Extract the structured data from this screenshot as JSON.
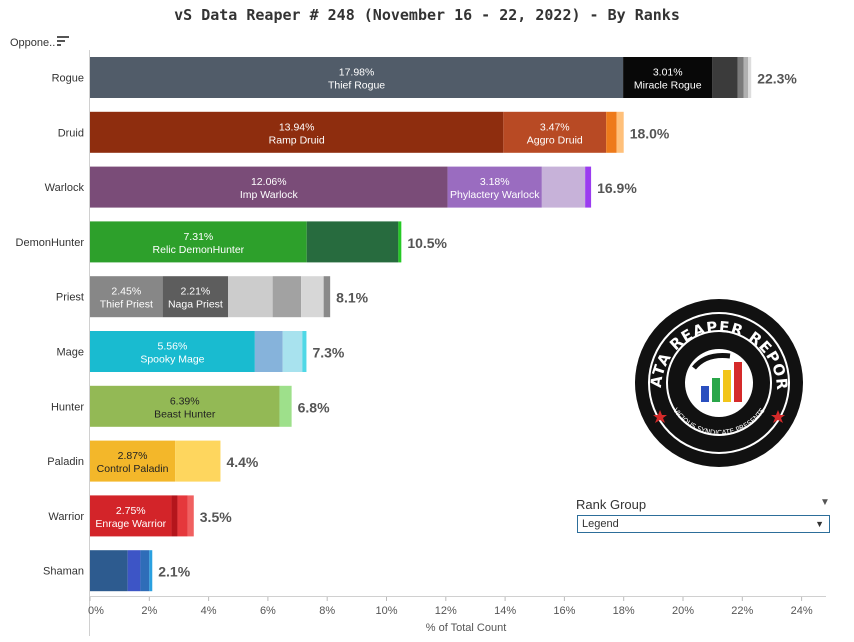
{
  "title": "vS Data Reaper #  248 (November 16 - 22, 2022) - By Ranks",
  "sort_label": "Oppone..",
  "filter": {
    "label": "Rank Group",
    "value": "Legend"
  },
  "logo": {
    "text_top": "DATA REAPER REPORT",
    "text_bottom": "VICIOUS SYNDICATE PRESENTS"
  },
  "chart_data": {
    "type": "bar",
    "orientation": "horizontal",
    "stacked": true,
    "xlabel": "% of Total Count",
    "xlim": [
      0,
      24
    ],
    "xticks": [
      0,
      2,
      4,
      6,
      8,
      10,
      12,
      14,
      16,
      18,
      20,
      22,
      24
    ],
    "xtick_labels": [
      "0%",
      "2%",
      "4%",
      "6%",
      "8%",
      "10%",
      "12%",
      "14%",
      "16%",
      "18%",
      "20%",
      "22%",
      "24%"
    ],
    "grid": false,
    "rows": [
      {
        "class": "Rogue",
        "total": "22.3%",
        "segments": [
          {
            "value": 17.98,
            "color": "#515c69",
            "label": "17.98%",
            "name": "Thief Rogue"
          },
          {
            "value": 3.01,
            "color": "#080808",
            "label": "3.01%",
            "name": "Miracle Rogue"
          },
          {
            "value": 0.85,
            "color": "#3b3b3b"
          },
          {
            "value": 0.2,
            "color": "#7a7a7a"
          },
          {
            "value": 0.16,
            "color": "#b0b0b0"
          },
          {
            "value": 0.1,
            "color": "#dddddd"
          }
        ]
      },
      {
        "class": "Druid",
        "total": "18.0%",
        "segments": [
          {
            "value": 13.94,
            "color": "#8e2d0e",
            "label": "13.94%",
            "name": "Ramp Druid"
          },
          {
            "value": 3.47,
            "color": "#b84a24",
            "label": "3.47%",
            "name": "Aggro Druid"
          },
          {
            "value": 0.35,
            "color": "#ee7a1a"
          },
          {
            "value": 0.24,
            "color": "#ffc07a"
          }
        ]
      },
      {
        "class": "Warlock",
        "total": "16.9%",
        "segments": [
          {
            "value": 12.06,
            "color": "#7a4c78",
            "label": "12.06%",
            "name": "Imp Warlock"
          },
          {
            "value": 3.18,
            "color": "#9a6cc0",
            "label": "3.18%",
            "name": "Phylactery Warlock"
          },
          {
            "value": 1.46,
            "color": "#c7b2d9"
          },
          {
            "value": 0.2,
            "color": "#9b3cf0"
          }
        ]
      },
      {
        "class": "DemonHunter",
        "total": "10.5%",
        "segments": [
          {
            "value": 7.31,
            "color": "#2da02b",
            "label": "7.31%",
            "name": "Relic DemonHunter"
          },
          {
            "value": 3.09,
            "color": "#276b3e"
          },
          {
            "value": 0.1,
            "color": "#25c925"
          }
        ]
      },
      {
        "class": "Priest",
        "total": "8.1%",
        "segments": [
          {
            "value": 2.45,
            "color": "#878787",
            "label": "2.45%",
            "name": "Thief Priest"
          },
          {
            "value": 2.21,
            "color": "#5d5d5d",
            "label": "2.21%",
            "name": "Naga Priest"
          },
          {
            "value": 1.5,
            "color": "#cccccc"
          },
          {
            "value": 0.96,
            "color": "#a2a2a2"
          },
          {
            "value": 0.76,
            "color": "#d7d7d7"
          },
          {
            "value": 0.22,
            "color": "#8a8a8a"
          }
        ]
      },
      {
        "class": "Mage",
        "total": "7.3%",
        "segments": [
          {
            "value": 5.56,
            "color": "#19bbd0",
            "label": "5.56%",
            "name": "Spooky Mage"
          },
          {
            "value": 0.94,
            "color": "#86b3db"
          },
          {
            "value": 0.66,
            "color": "#a8e2ee"
          },
          {
            "value": 0.14,
            "color": "#4fd8e6"
          }
        ]
      },
      {
        "class": "Hunter",
        "total": "6.8%",
        "segments": [
          {
            "value": 6.39,
            "color": "#93b955",
            "label": "6.39%",
            "name": "Beast Hunter"
          },
          {
            "value": 0.41,
            "color": "#9ee08b"
          }
        ]
      },
      {
        "class": "Paladin",
        "total": "4.4%",
        "segments": [
          {
            "value": 2.87,
            "color": "#f3b72a",
            "label": "2.87%",
            "name": "Control Paladin"
          },
          {
            "value": 1.53,
            "color": "#fed65e"
          }
        ]
      },
      {
        "class": "Warrior",
        "total": "3.5%",
        "segments": [
          {
            "value": 2.75,
            "color": "#d32429",
            "label": "2.75%",
            "name": "Enrage Warrior"
          },
          {
            "value": 0.2,
            "color": "#b4151c"
          },
          {
            "value": 0.35,
            "color": "#e5383c"
          },
          {
            "value": 0.2,
            "color": "#f06060"
          }
        ]
      },
      {
        "class": "Shaman",
        "total": "2.1%",
        "segments": [
          {
            "value": 1.27,
            "color": "#2d5b8f"
          },
          {
            "value": 0.43,
            "color": "#3d55c6"
          },
          {
            "value": 0.3,
            "color": "#2f6db8"
          },
          {
            "value": 0.1,
            "color": "#2aa0e0"
          }
        ]
      }
    ]
  }
}
